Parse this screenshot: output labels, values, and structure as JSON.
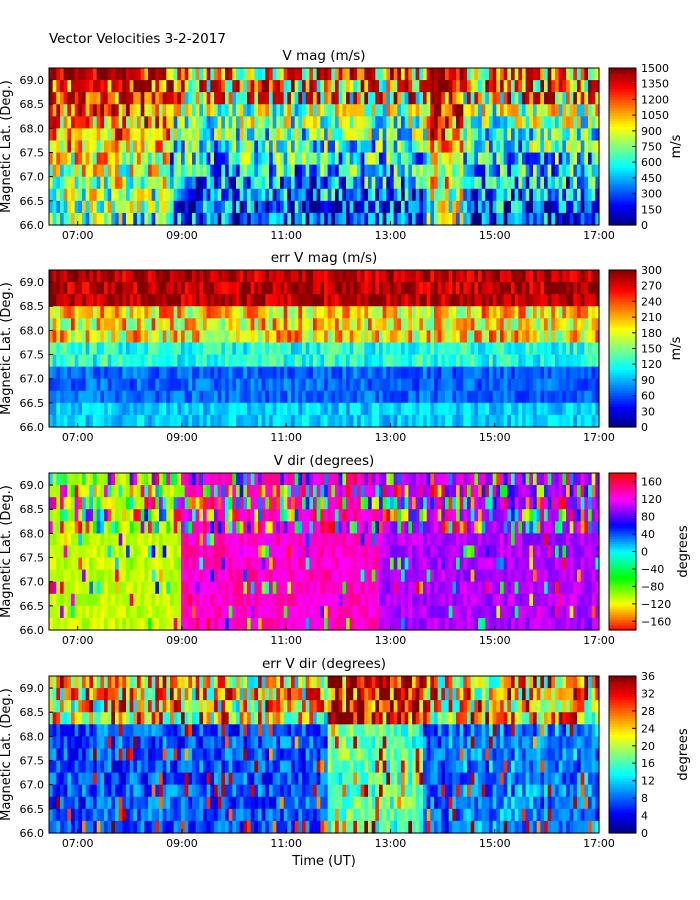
{
  "figure_title": "Vector Velocities 3-2-2017",
  "chart_data": [
    {
      "type": "heatmap",
      "title": "V mag (m/s)",
      "ylabel": "Magnetic Lat. (Deg.)",
      "xlabel": "",
      "x_range_hours": [
        6.45,
        17.0
      ],
      "x_ticks": [
        "07:00",
        "09:00",
        "11:00",
        "13:00",
        "15:00",
        "17:00"
      ],
      "x_tick_hours": [
        7,
        9,
        11,
        13,
        15,
        17
      ],
      "ylim": [
        66.0,
        69.25
      ],
      "y_ticks": [
        "66.0",
        "66.5",
        "67.0",
        "67.5",
        "68.0",
        "68.5",
        "69.0"
      ],
      "colorbar": {
        "label": "m/s",
        "colormap": "jet",
        "range": [
          0,
          1500
        ],
        "ticks": [
          "0",
          "150",
          "300",
          "450",
          "600",
          "750",
          "900",
          "1050",
          "1200",
          "1350",
          "1500"
        ]
      }
    },
    {
      "type": "heatmap",
      "title": "err V mag (m/s)",
      "ylabel": "Magnetic Lat. (Deg.)",
      "xlabel": "",
      "x_range_hours": [
        6.45,
        17.0
      ],
      "x_ticks": [
        "07:00",
        "09:00",
        "11:00",
        "13:00",
        "15:00",
        "17:00"
      ],
      "x_tick_hours": [
        7,
        9,
        11,
        13,
        15,
        17
      ],
      "ylim": [
        66.0,
        69.25
      ],
      "y_ticks": [
        "66.0",
        "66.5",
        "67.0",
        "67.5",
        "68.0",
        "68.5",
        "69.0"
      ],
      "colorbar": {
        "label": "m/s",
        "colormap": "jet",
        "range": [
          0,
          300
        ],
        "ticks": [
          "0",
          "30",
          "60",
          "90",
          "120",
          "150",
          "180",
          "210",
          "240",
          "270",
          "300"
        ]
      }
    },
    {
      "type": "heatmap",
      "title": "V dir (degrees)",
      "ylabel": "Magnetic Lat. (Deg.)",
      "xlabel": "",
      "x_range_hours": [
        6.45,
        17.0
      ],
      "x_ticks": [
        "07:00",
        "09:00",
        "11:00",
        "13:00",
        "15:00",
        "17:00"
      ],
      "x_tick_hours": [
        7,
        9,
        11,
        13,
        15,
        17
      ],
      "ylim": [
        66.0,
        69.25
      ],
      "y_ticks": [
        "66.0",
        "66.5",
        "67.0",
        "67.5",
        "68.0",
        "68.5",
        "69.0"
      ],
      "colorbar": {
        "label": "degrees",
        "colormap": "hsv",
        "range": [
          -180,
          180
        ],
        "ticks": [
          "160",
          "120",
          "80",
          "40",
          "0",
          "−40",
          "−80",
          "−120",
          "−160"
        ],
        "tick_values": [
          160,
          120,
          80,
          40,
          0,
          -40,
          -80,
          -120,
          -160
        ]
      }
    },
    {
      "type": "heatmap",
      "title": "err V dir (degrees)",
      "ylabel": "Magnetic Lat. (Deg.)",
      "xlabel": "Time (UT)",
      "x_range_hours": [
        6.45,
        17.0
      ],
      "x_ticks": [
        "07:00",
        "09:00",
        "11:00",
        "13:00",
        "15:00",
        "17:00"
      ],
      "x_tick_hours": [
        7,
        9,
        11,
        13,
        15,
        17
      ],
      "ylim": [
        66.0,
        69.25
      ],
      "y_ticks": [
        "66.0",
        "66.5",
        "67.0",
        "67.5",
        "68.0",
        "68.5",
        "69.0"
      ],
      "colorbar": {
        "label": "degrees",
        "colormap": "jet",
        "range": [
          0,
          36
        ],
        "ticks": [
          "0",
          "4",
          "8",
          "12",
          "16",
          "20",
          "24",
          "28",
          "32",
          "36"
        ]
      }
    }
  ]
}
